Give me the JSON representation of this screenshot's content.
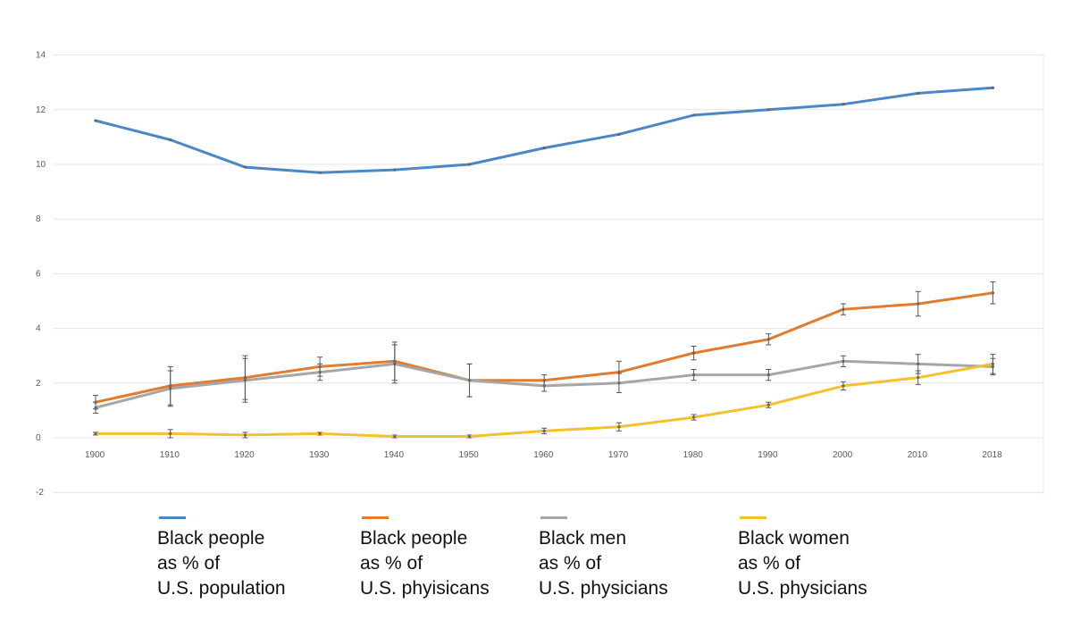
{
  "chart_data": {
    "type": "line",
    "x": [
      "1900",
      "1910",
      "1920",
      "1930",
      "1940",
      "1950",
      "1960",
      "1970",
      "1980",
      "1990",
      "2000",
      "2010",
      "2018"
    ],
    "ylim": [
      -2,
      14
    ],
    "yticks": [
      "-2",
      "0",
      "2",
      "4",
      "6",
      "8",
      "10",
      "12",
      "14"
    ],
    "grid": true,
    "legend_position": "bottom",
    "series": [
      {
        "name": "Black people\nas % of\nU.S. population",
        "color": "#4a86c8",
        "values": [
          11.6,
          10.9,
          9.9,
          9.7,
          9.8,
          10.0,
          10.6,
          11.1,
          11.8,
          12.0,
          12.2,
          12.6,
          12.8
        ],
        "error": null
      },
      {
        "name": "Black people\nas % of\nU.S. phyisicans",
        "color": "#e07b30",
        "values": [
          1.3,
          1.9,
          2.2,
          2.6,
          2.8,
          2.1,
          2.1,
          2.4,
          3.1,
          3.6,
          4.7,
          4.9,
          5.3
        ],
        "error": [
          0.25,
          0.7,
          0.8,
          0.35,
          0.7,
          0.6,
          0.2,
          0.4,
          0.25,
          0.2,
          0.2,
          0.45,
          0.4
        ]
      },
      {
        "name": "Black men\nas % of\nU.S. physicians",
        "color": "#a6a6a6",
        "values": [
          1.1,
          1.8,
          2.1,
          2.4,
          2.7,
          2.1,
          1.9,
          2.0,
          2.3,
          2.3,
          2.8,
          2.7,
          2.6
        ],
        "error": [
          0.2,
          0.65,
          0.8,
          0.3,
          0.7,
          0.6,
          0.2,
          0.35,
          0.2,
          0.2,
          0.2,
          0.35,
          0.3
        ]
      },
      {
        "name": "Black women\nas % of\nU.S. physicians",
        "color": "#f2c12e",
        "values": [
          0.15,
          0.15,
          0.1,
          0.15,
          0.05,
          0.05,
          0.25,
          0.4,
          0.75,
          1.2,
          1.9,
          2.2,
          2.7
        ],
        "error": [
          0.05,
          0.15,
          0.1,
          0.05,
          0.05,
          0.05,
          0.1,
          0.15,
          0.1,
          0.1,
          0.15,
          0.25,
          0.35
        ]
      }
    ]
  }
}
